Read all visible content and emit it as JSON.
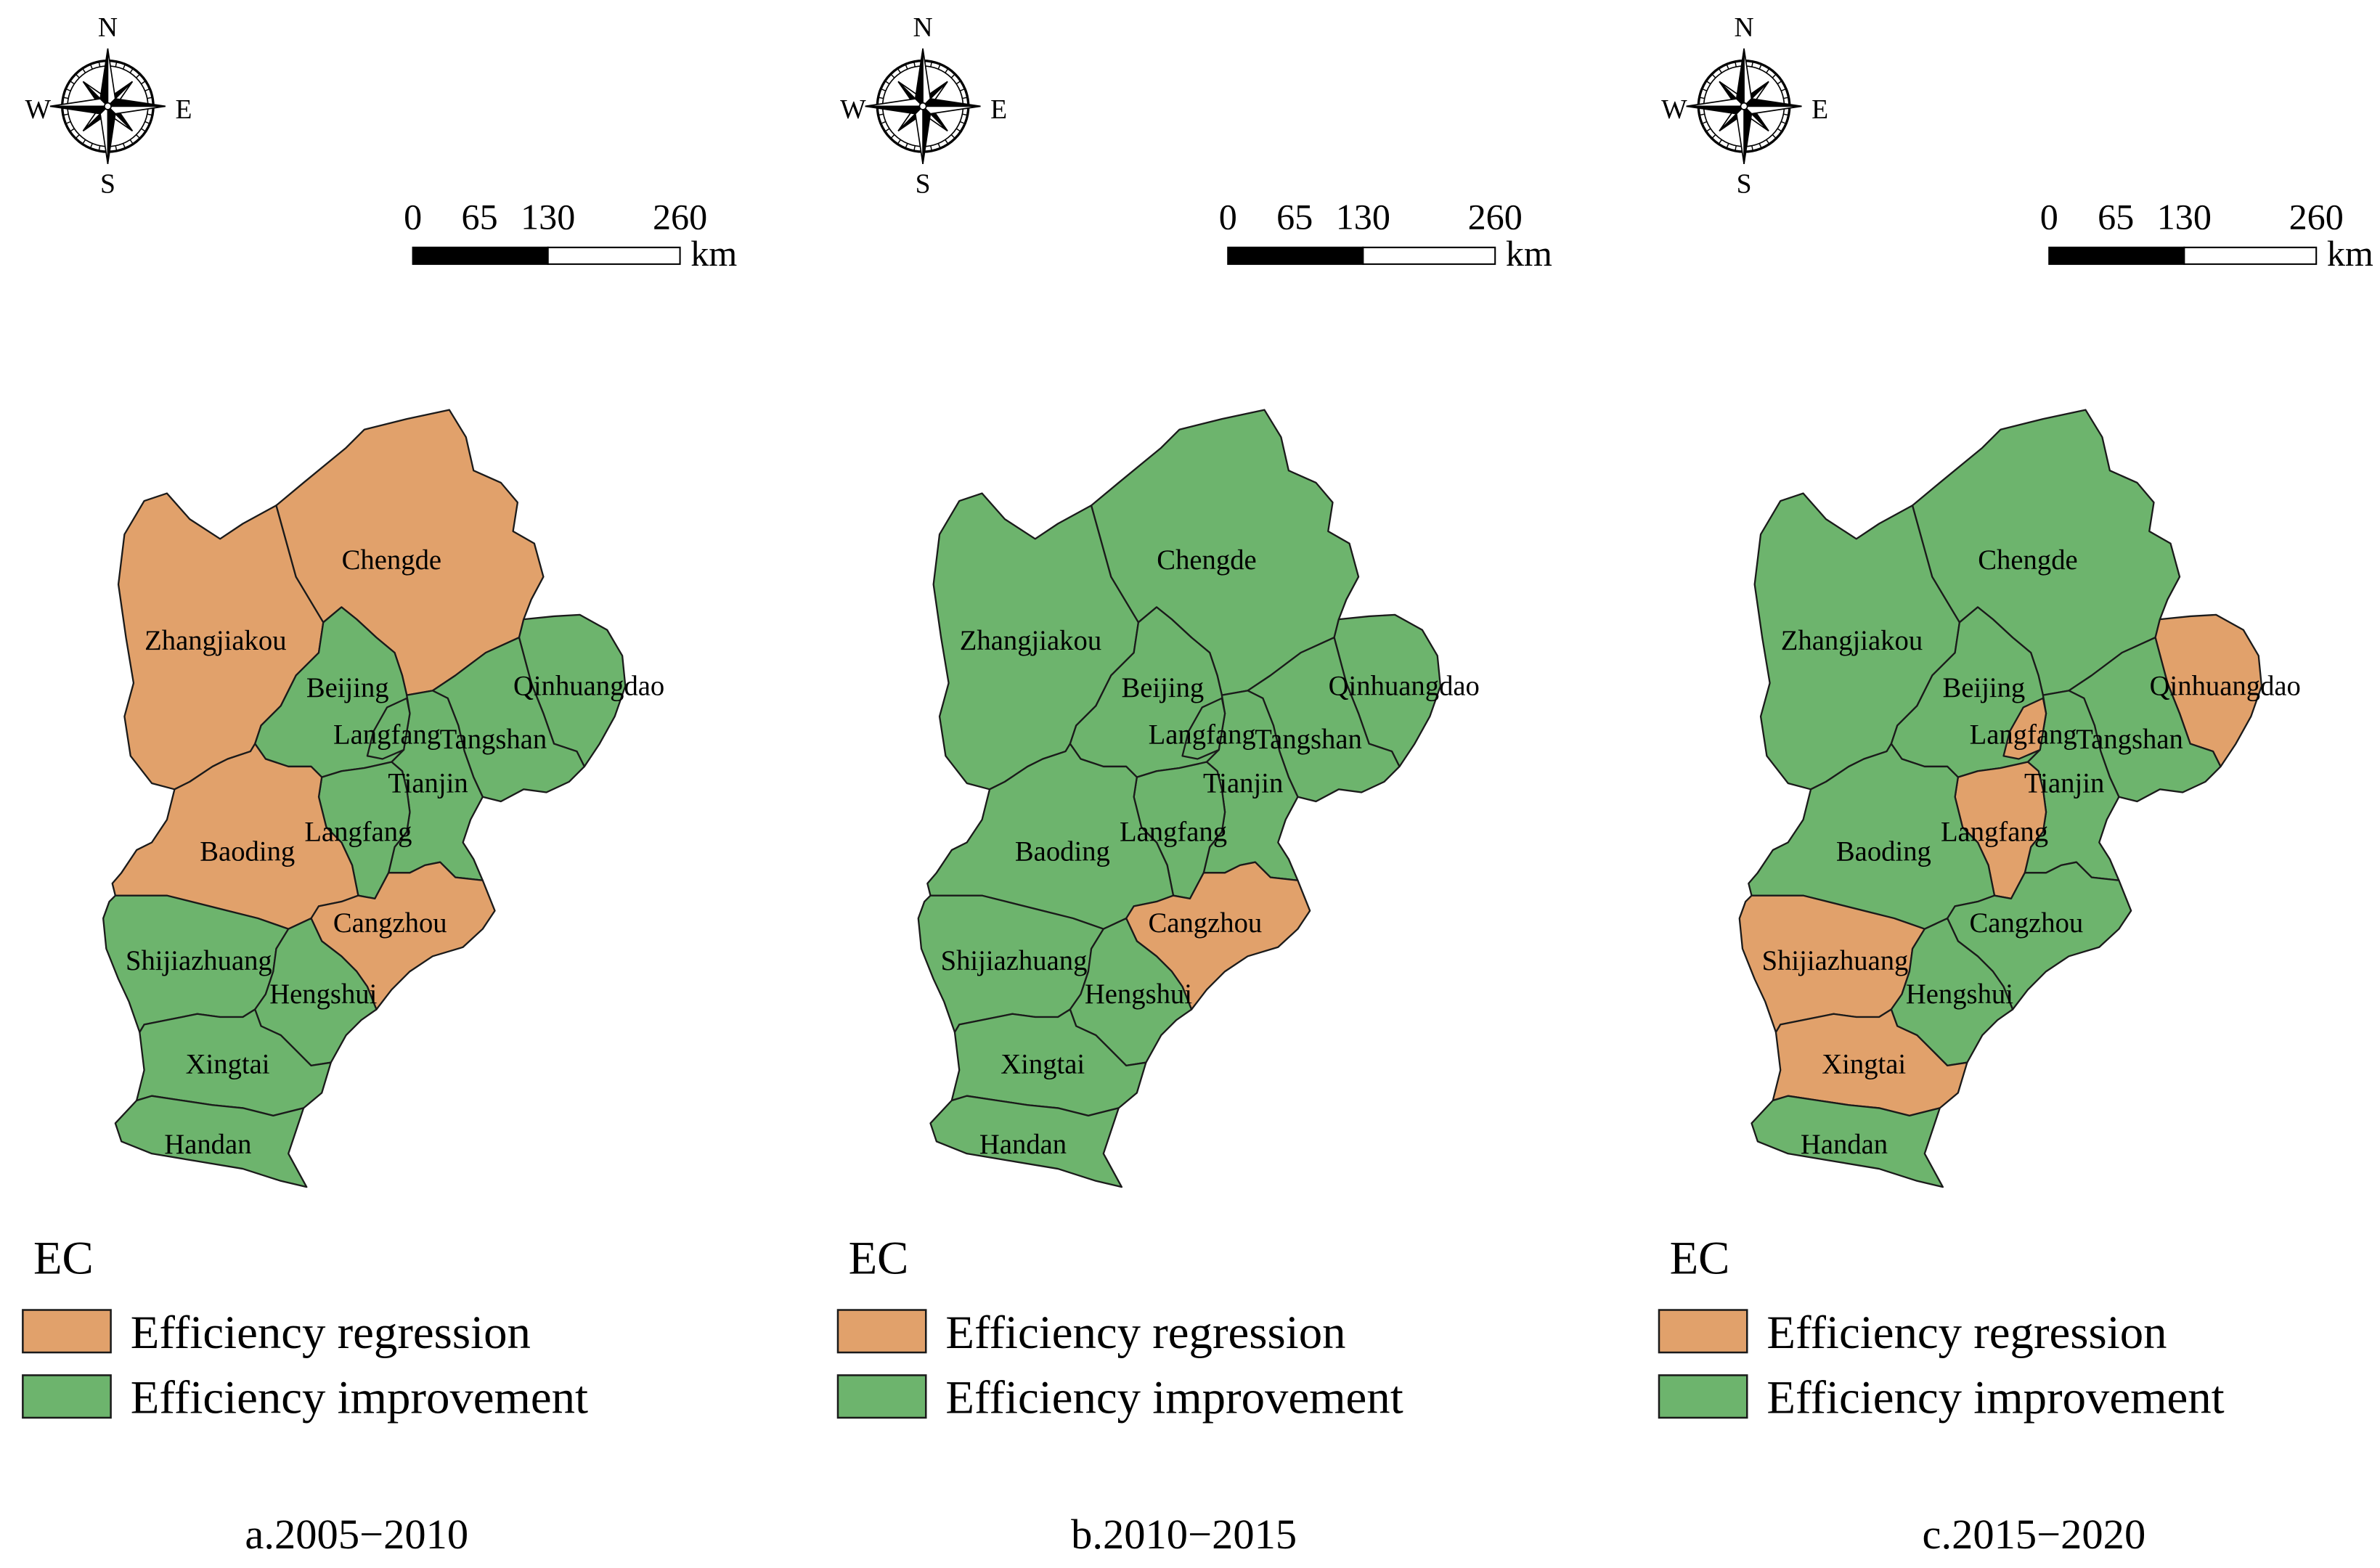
{
  "colors": {
    "outline": "#1A1A1A",
    "text": "#000000"
  },
  "compass": {
    "north": "N",
    "east": "E",
    "south": "S",
    "west": "W"
  },
  "scale_bar": {
    "ticks": [
      "0",
      "65",
      "130",
      "260"
    ],
    "unit": "km"
  },
  "legend": {
    "title": "EC",
    "items": [
      {
        "label": "Efficiency regression",
        "color": "#E1A16B"
      },
      {
        "label": "Efficiency improvement",
        "color": "#6DB46D"
      }
    ]
  },
  "panels": [
    {
      "caption": "a.2005−2010",
      "regions": [
        {
          "name": "Zhangjiakou",
          "regression": true
        },
        {
          "name": "Chengde",
          "regression": true
        },
        {
          "name": "Beijing",
          "regression": false
        },
        {
          "name": "Qinhuangdao",
          "regression": false
        },
        {
          "name": "Tangshan",
          "regression": false
        },
        {
          "name": "Tianjin",
          "regression": false
        },
        {
          "name": "Langfang",
          "regression": false
        },
        {
          "name": "Langfang",
          "regression": false
        },
        {
          "name": "Baoding",
          "regression": true
        },
        {
          "name": "Cangzhou",
          "regression": true
        },
        {
          "name": "Shijiazhuang",
          "regression": false
        },
        {
          "name": "Hengshui",
          "regression": false
        },
        {
          "name": "Xingtai",
          "regression": false
        },
        {
          "name": "Handan",
          "regression": false
        }
      ]
    },
    {
      "caption": "b.2010−2015",
      "regions": [
        {
          "name": "Zhangjiakou",
          "regression": false
        },
        {
          "name": "Chengde",
          "regression": false
        },
        {
          "name": "Beijing",
          "regression": false
        },
        {
          "name": "Qinhuangdao",
          "regression": false
        },
        {
          "name": "Tangshan",
          "regression": false
        },
        {
          "name": "Tianjin",
          "regression": false
        },
        {
          "name": "Langfang",
          "regression": false
        },
        {
          "name": "Langfang",
          "regression": false
        },
        {
          "name": "Baoding",
          "regression": false
        },
        {
          "name": "Cangzhou",
          "regression": true
        },
        {
          "name": "Shijiazhuang",
          "regression": false
        },
        {
          "name": "Hengshui",
          "regression": false
        },
        {
          "name": "Xingtai",
          "regression": false
        },
        {
          "name": "Handan",
          "regression": false
        }
      ]
    },
    {
      "caption": "c.2015−2020",
      "regions": [
        {
          "name": "Zhangjiakou",
          "regression": false
        },
        {
          "name": "Chengde",
          "regression": false
        },
        {
          "name": "Beijing",
          "regression": false
        },
        {
          "name": "Qinhuangdao",
          "regression": true
        },
        {
          "name": "Tangshan",
          "regression": false
        },
        {
          "name": "Tianjin",
          "regression": false
        },
        {
          "name": "Langfang",
          "regression": true
        },
        {
          "name": "Langfang",
          "regression": true
        },
        {
          "name": "Baoding",
          "regression": false
        },
        {
          "name": "Cangzhou",
          "regression": false
        },
        {
          "name": "Shijiazhuang",
          "regression": true
        },
        {
          "name": "Hengshui",
          "regression": false
        },
        {
          "name": "Xingtai",
          "regression": true
        },
        {
          "name": "Handan",
          "regression": false
        }
      ]
    }
  ]
}
